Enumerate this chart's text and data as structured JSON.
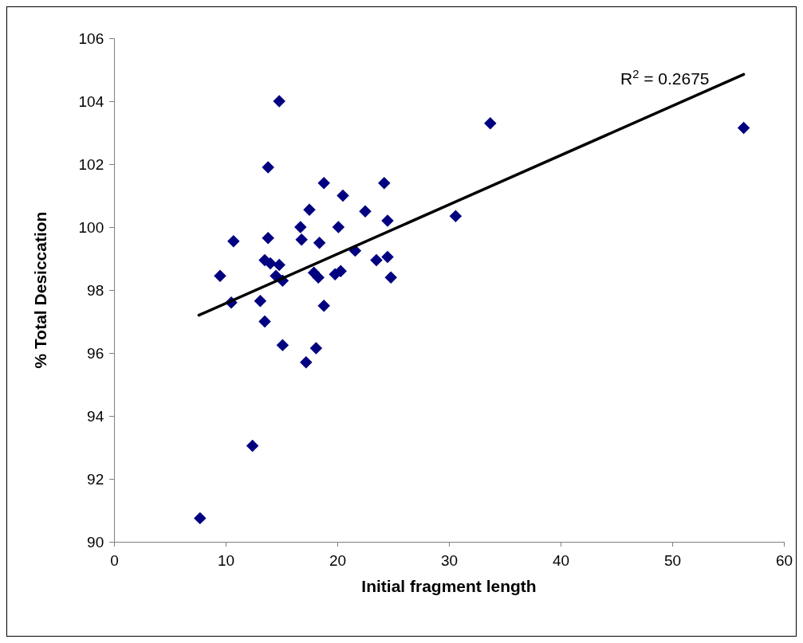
{
  "chart_data": {
    "type": "scatter",
    "xlabel": "Initial fragment length",
    "ylabel": "% Total Desiccation",
    "xlim": [
      0,
      60
    ],
    "xticks": [
      0,
      10,
      20,
      30,
      40,
      50,
      60
    ],
    "ylim": [
      90,
      106
    ],
    "yticks": [
      90,
      92,
      94,
      96,
      98,
      100,
      102,
      104,
      106
    ],
    "grid": false,
    "marker": "diamond",
    "annotations": [
      "R$^{2}$ = 0.2675"
    ],
    "series": [
      {
        "color": "#000080",
        "x": [
          14.8,
          13.8,
          18.8,
          24.2,
          20.5,
          17.5,
          22.5,
          24.5,
          16.7,
          20.1,
          10.7,
          13.8,
          16.8,
          18.4,
          21.6,
          13.5,
          14.0,
          14.8,
          23.5,
          24.5,
          9.5,
          14.5,
          15.1,
          17.9,
          18.3,
          19.8,
          20.3,
          24.8,
          10.5,
          13.1,
          18.8,
          13.5,
          15.1,
          18.1,
          17.2,
          12.4,
          7.7,
          33.7,
          56.4,
          30.6
        ],
        "values": [
          104.0,
          101.9,
          101.4,
          101.4,
          101.0,
          100.55,
          100.5,
          100.2,
          100.0,
          100.0,
          99.55,
          99.65,
          99.6,
          99.5,
          99.25,
          98.95,
          98.85,
          98.8,
          98.95,
          99.05,
          98.45,
          98.45,
          98.3,
          98.55,
          98.4,
          98.5,
          98.6,
          98.4,
          97.6,
          97.65,
          97.5,
          97.0,
          96.25,
          96.15,
          95.7,
          93.05,
          90.75,
          103.3,
          103.15,
          100.35
        ]
      },
      {
        "type": "line",
        "color": "#000000",
        "marker": "none",
        "line_style": "solid",
        "x": [
          7.6,
          56.4
        ],
        "values": [
          97.2,
          104.85
        ]
      }
    ]
  }
}
